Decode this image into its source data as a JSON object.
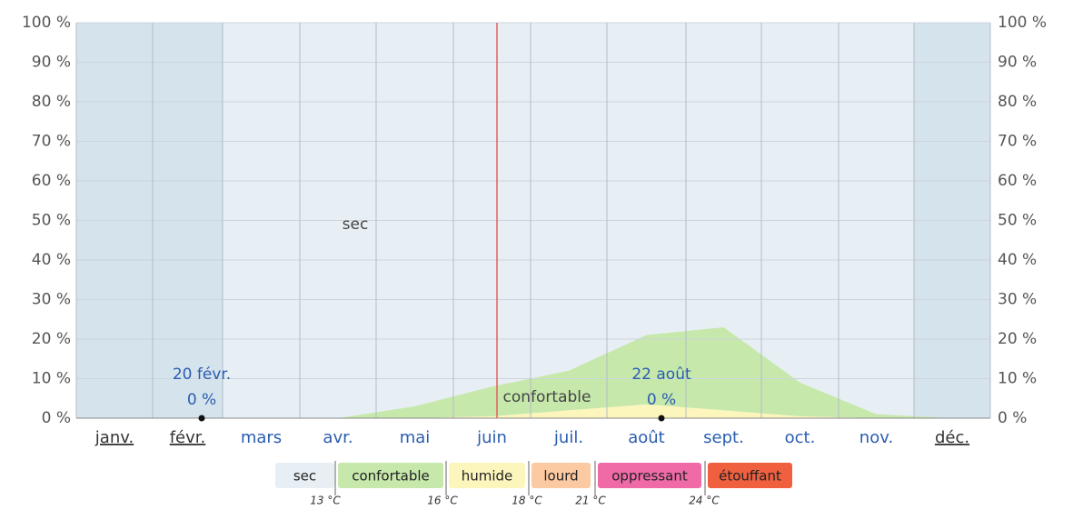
{
  "chart_data": {
    "type": "area",
    "categories": [
      "janv.",
      "févr.",
      "mars",
      "avr.",
      "mai",
      "juin",
      "juil.",
      "août",
      "sept.",
      "oct.",
      "nov.",
      "déc."
    ],
    "linked_categories": [
      0,
      1,
      11
    ],
    "shaded_categories": [
      0,
      1,
      11
    ],
    "background_series": {
      "name": "sec",
      "color": "#e8eff4",
      "shade_color": "#d5e3ec"
    },
    "series": [
      {
        "name": "humide",
        "color": "#fcf6bd",
        "values": [
          0,
          0,
          0,
          0,
          0,
          0.5,
          2,
          3.5,
          2,
          0.5,
          0,
          0
        ]
      },
      {
        "name": "confortable",
        "color": "#c6e8ab",
        "values": [
          0,
          0,
          0,
          0,
          3,
          7.5,
          10,
          17.5,
          21,
          8.5,
          1,
          0
        ]
      }
    ],
    "region_labels": [
      "sec",
      "confortable"
    ],
    "ylim": [
      0,
      100
    ],
    "yticks": [
      {
        "value": 0,
        "label": "0 %"
      },
      {
        "value": 10,
        "label": "10 %"
      },
      {
        "value": 20,
        "label": "20 %"
      },
      {
        "value": 30,
        "label": "30 %"
      },
      {
        "value": 40,
        "label": "40 %"
      },
      {
        "value": 50,
        "label": "50 %"
      },
      {
        "value": 60,
        "label": "60 %"
      },
      {
        "value": 70,
        "label": "70 %"
      },
      {
        "value": 80,
        "label": "80 %"
      },
      {
        "value": 90,
        "label": "90 %"
      },
      {
        "value": 100,
        "label": "100 %"
      }
    ],
    "grid": true,
    "annotations": [
      {
        "label": "20 févr.",
        "value": 0,
        "value_label": "0 %"
      },
      {
        "label": "22 août",
        "value": 0,
        "value_label": "0 %"
      }
    ],
    "legend": {
      "items": [
        {
          "name": "sec",
          "color": "#e8eff4"
        },
        {
          "name": "confortable",
          "color": "#c6e8ab"
        },
        {
          "name": "humide",
          "color": "#fcf6bd"
        },
        {
          "name": "lourd",
          "color": "#fbc9a2"
        },
        {
          "name": "oppressant",
          "color": "#f06aa8"
        },
        {
          "name": "étouffant",
          "color": "#f0603f"
        }
      ],
      "thresholds": [
        "13 °C",
        "16 °C",
        "18 °C",
        "21 °C",
        "24 °C"
      ]
    }
  }
}
